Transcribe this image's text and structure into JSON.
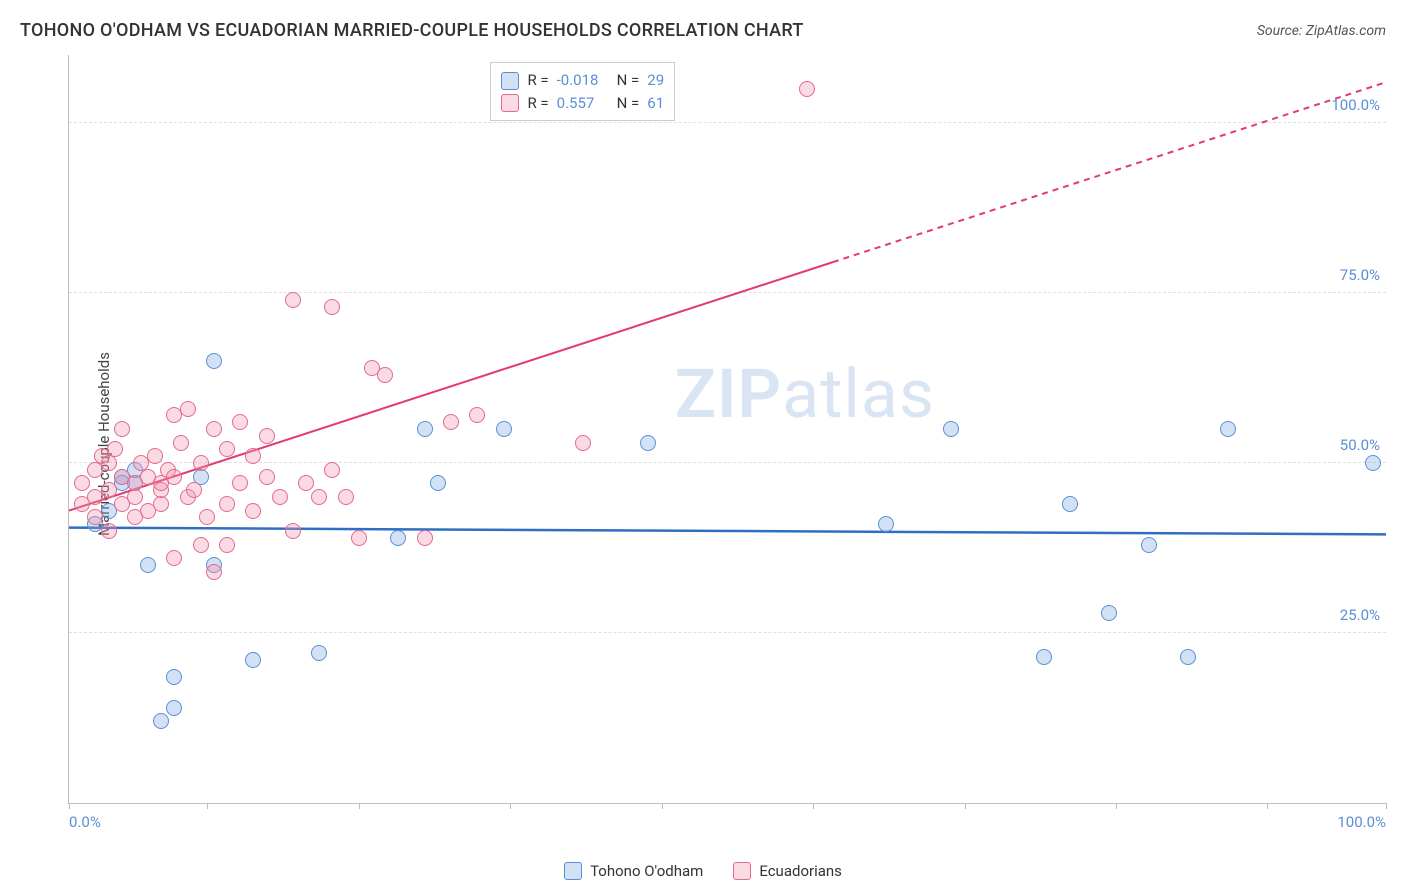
{
  "title": "TOHONO O'ODHAM VS ECUADORIAN MARRIED-COUPLE HOUSEHOLDS CORRELATION CHART",
  "source": "Source: ZipAtlas.com",
  "yaxis_title": "Married-couple Households",
  "watermark_zip": "ZIP",
  "watermark_atlas": "atlas",
  "chart": {
    "type": "scatter",
    "background_color": "#ffffff",
    "grid_color": "#e0e0e0",
    "axis_color": "#bdbdbd",
    "xlim": [
      0,
      100
    ],
    "ylim": [
      0,
      110
    ],
    "xtick_positions": [
      0,
      10.5,
      22,
      33.5,
      45,
      56.5,
      68,
      79.5,
      91,
      100
    ],
    "xtick_labels": {
      "left": "0.0%",
      "right": "100.0%"
    },
    "yticks": [
      {
        "v": 25,
        "label": "25.0%"
      },
      {
        "v": 50,
        "label": "50.0%"
      },
      {
        "v": 75,
        "label": "75.0%"
      },
      {
        "v": 100,
        "label": "100.0%"
      }
    ],
    "marker_radius": 8,
    "marker_stroke_width": 1.5,
    "series": [
      {
        "name": "Tohono O'odham",
        "label": "Tohono O'odham",
        "fill": "rgba(130,170,225,0.35)",
        "stroke": "#5a8fd6",
        "R": "-0.018",
        "N": "29",
        "trend": {
          "x1": 0,
          "y1": 40.5,
          "x2": 100,
          "y2": 39.5,
          "stroke": "#2f6fc3",
          "width": 2.5,
          "dash_from_x": null
        },
        "points": [
          [
            2,
            41
          ],
          [
            3,
            43
          ],
          [
            4,
            48
          ],
          [
            4,
            47
          ],
          [
            5,
            47
          ],
          [
            5,
            49
          ],
          [
            6,
            35
          ],
          [
            7,
            12
          ],
          [
            8,
            18.5
          ],
          [
            8,
            14
          ],
          [
            10,
            48
          ],
          [
            11,
            35
          ],
          [
            11,
            65
          ],
          [
            14,
            21
          ],
          [
            19,
            22
          ],
          [
            25,
            39
          ],
          [
            27,
            55
          ],
          [
            28,
            47
          ],
          [
            33,
            55
          ],
          [
            44,
            53
          ],
          [
            62,
            41
          ],
          [
            67,
            55
          ],
          [
            74,
            21.5
          ],
          [
            76,
            44
          ],
          [
            79,
            28
          ],
          [
            82,
            38
          ],
          [
            85,
            21.5
          ],
          [
            88,
            55
          ],
          [
            99,
            50
          ]
        ]
      },
      {
        "name": "Ecuadorians",
        "label": "Ecuadorians",
        "fill": "rgba(240,150,175,0.35)",
        "stroke": "#e56a8f",
        "R": "0.557",
        "N": "61",
        "trend": {
          "x1": 0,
          "y1": 43,
          "x2": 100,
          "y2": 106,
          "stroke": "#e23b6e",
          "width": 2,
          "dash_from_x": 58
        },
        "points": [
          [
            1,
            44
          ],
          [
            1,
            47
          ],
          [
            2,
            42
          ],
          [
            2,
            45
          ],
          [
            2,
            49
          ],
          [
            2.5,
            51
          ],
          [
            3,
            50
          ],
          [
            3,
            46
          ],
          [
            3,
            40
          ],
          [
            3.5,
            52
          ],
          [
            4,
            44
          ],
          [
            4,
            48
          ],
          [
            4,
            55
          ],
          [
            5,
            45
          ],
          [
            5,
            42
          ],
          [
            5,
            47
          ],
          [
            5.5,
            50
          ],
          [
            6,
            48
          ],
          [
            6,
            43
          ],
          [
            6.5,
            51
          ],
          [
            7,
            44
          ],
          [
            7,
            46
          ],
          [
            7,
            47
          ],
          [
            7.5,
            49
          ],
          [
            8,
            57
          ],
          [
            8,
            48
          ],
          [
            8,
            36
          ],
          [
            8.5,
            53
          ],
          [
            9,
            45
          ],
          [
            9,
            58
          ],
          [
            9.5,
            46
          ],
          [
            10,
            38
          ],
          [
            10,
            50
          ],
          [
            10.5,
            42
          ],
          [
            11,
            34
          ],
          [
            11,
            55
          ],
          [
            12,
            44
          ],
          [
            12,
            38
          ],
          [
            12,
            52
          ],
          [
            13,
            47
          ],
          [
            13,
            56
          ],
          [
            14,
            51
          ],
          [
            14,
            43
          ],
          [
            15,
            48
          ],
          [
            15,
            54
          ],
          [
            16,
            45
          ],
          [
            17,
            74
          ],
          [
            17,
            40
          ],
          [
            18,
            47
          ],
          [
            19,
            45
          ],
          [
            20,
            49
          ],
          [
            20,
            73
          ],
          [
            21,
            45
          ],
          [
            22,
            39
          ],
          [
            23,
            64
          ],
          [
            24,
            63
          ],
          [
            27,
            39
          ],
          [
            29,
            56
          ],
          [
            31,
            57
          ],
          [
            39,
            53
          ],
          [
            56,
            105
          ]
        ]
      }
    ]
  },
  "stats_box": {
    "top_pct": 1,
    "left_pct": 32
  }
}
